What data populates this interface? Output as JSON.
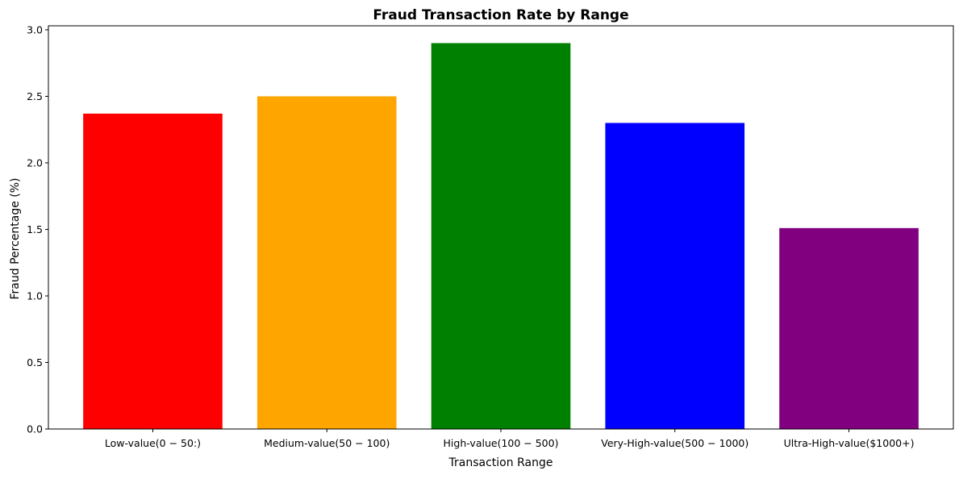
{
  "chart_data": {
    "type": "bar",
    "title": "Fraud Transaction Rate by Range",
    "xlabel": "Transaction Range",
    "ylabel": "Fraud Percentage (%)",
    "categories": [
      "Low-value(0 − 50:)",
      "Medium-value(50 − 100)",
      "High-value(100 − 500)",
      "Very-High-value(500 − 1000)",
      "Ultra-High-value($1000+)"
    ],
    "values": [
      2.37,
      2.5,
      2.9,
      2.3,
      1.51
    ],
    "colors": [
      "#ff0000",
      "#ffa500",
      "#008000",
      "#0000ff",
      "#800080"
    ],
    "ylim": [
      0,
      3.03
    ],
    "yticks": [
      0.0,
      0.5,
      1.0,
      1.5,
      2.0,
      2.5,
      3.0
    ],
    "ytick_labels": [
      "0.0",
      "0.5",
      "1.0",
      "1.5",
      "2.0",
      "2.5",
      "3.0"
    ],
    "grid": false,
    "legend": "none"
  }
}
